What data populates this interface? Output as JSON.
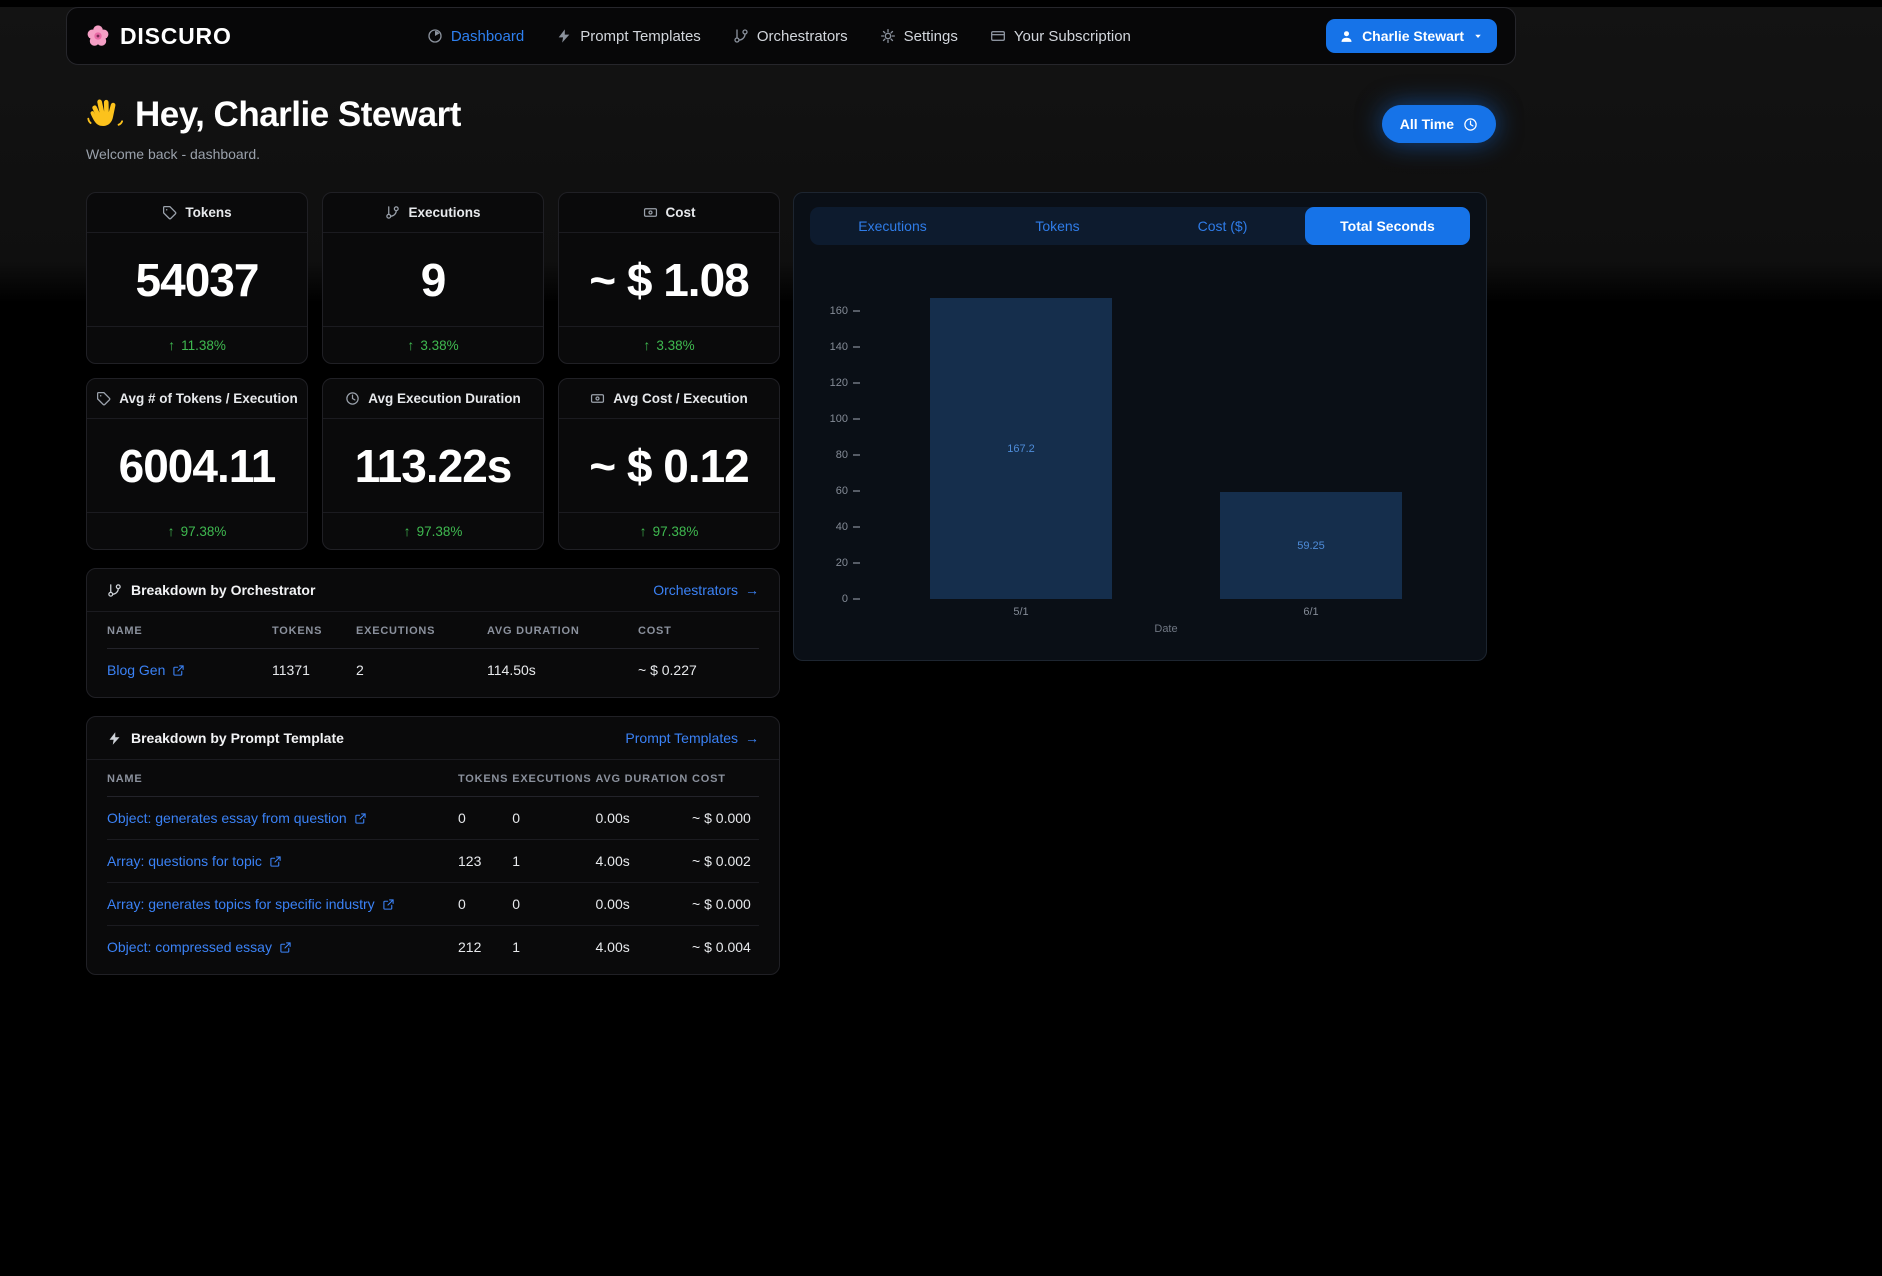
{
  "brand": {
    "name": "DISCURO",
    "logo_icon": "flower-icon"
  },
  "nav": {
    "items": [
      {
        "label": "Dashboard",
        "icon": "gauge-icon",
        "active": true
      },
      {
        "label": "Prompt Templates",
        "icon": "bolt-icon",
        "active": false
      },
      {
        "label": "Orchestrators",
        "icon": "branch-icon",
        "active": false
      },
      {
        "label": "Settings",
        "icon": "gear-icon",
        "active": false
      },
      {
        "label": "Your Subscription",
        "icon": "card-icon",
        "active": false
      }
    ],
    "user_button": {
      "label": "Charlie Stewart",
      "icon": "user-icon"
    }
  },
  "hero": {
    "greeting": "Hey, Charlie Stewart",
    "wave_icon": "waving-hand-icon",
    "subtitle": "Welcome back - dashboard.",
    "time_button_label": "All Time",
    "time_button_icon": "clock-icon"
  },
  "stats": [
    {
      "title": "Tokens",
      "icon": "tag-icon",
      "value": "54037",
      "change": "11.38%",
      "trend": "up"
    },
    {
      "title": "Executions",
      "icon": "branch-icon",
      "value": "9",
      "change": "3.38%",
      "trend": "up"
    },
    {
      "title": "Cost",
      "icon": "banknote-icon",
      "value": "~ $ 1.08",
      "change": "3.38%",
      "trend": "up"
    },
    {
      "title": "Avg # of Tokens / Execution",
      "icon": "tag-icon",
      "value": "6004.11",
      "change": "97.38%",
      "trend": "up"
    },
    {
      "title": "Avg Execution Duration",
      "icon": "clock-icon",
      "value": "113.22s",
      "change": "97.38%",
      "trend": "up"
    },
    {
      "title": "Avg Cost / Execution",
      "icon": "banknote-icon",
      "value": "~ $ 0.12",
      "change": "97.38%",
      "trend": "up"
    }
  ],
  "chart_panel": {
    "tabs": [
      {
        "label": "Executions",
        "active": false
      },
      {
        "label": "Tokens",
        "active": false
      },
      {
        "label": "Cost ($)",
        "active": false
      },
      {
        "label": "Total Seconds",
        "active": true
      }
    ]
  },
  "chart_data": {
    "type": "bar",
    "series_name": "Total Seconds",
    "x": [
      "5/1",
      "6/1"
    ],
    "values": [
      167.2,
      59.25
    ],
    "value_labels": [
      "167.2",
      "59.25"
    ],
    "xlabel": "Date",
    "ylim": [
      0,
      160
    ],
    "yticks": [
      0,
      20,
      40,
      60,
      80,
      100,
      120,
      140,
      160
    ],
    "grid": false,
    "legend": false,
    "bar_color": "#152e4c",
    "label_color": "#4e8cd8"
  },
  "orchestrators": {
    "title": "Breakdown by Orchestrator",
    "icon": "branch-icon",
    "link_label": "Orchestrators",
    "columns": [
      "NAME",
      "TOKENS",
      "EXECUTIONS",
      "AVG DURATION",
      "COST"
    ],
    "rows": [
      {
        "name": "Blog Gen",
        "tokens": "11371",
        "executions": "2",
        "avg_duration": "114.50s",
        "cost": "~ $ 0.227"
      }
    ]
  },
  "templates": {
    "title": "Breakdown by Prompt Template",
    "icon": "bolt-icon",
    "link_label": "Prompt Templates",
    "columns": [
      "NAME",
      "TOKENS",
      "EXECUTIONS",
      "AVG DURATION",
      "COST"
    ],
    "rows": [
      {
        "name": "Object: generates essay from question",
        "tokens": "0",
        "executions": "0",
        "avg_duration": "0.00s",
        "cost": "~ $ 0.000"
      },
      {
        "name": "Array: questions for topic",
        "tokens": "123",
        "executions": "1",
        "avg_duration": "4.00s",
        "cost": "~ $ 0.002"
      },
      {
        "name": "Array: generates topics for specific industry",
        "tokens": "0",
        "executions": "0",
        "avg_duration": "0.00s",
        "cost": "~ $ 0.000"
      },
      {
        "name": "Object: compressed essay",
        "tokens": "212",
        "executions": "1",
        "avg_duration": "4.00s",
        "cost": "~ $ 0.004"
      }
    ]
  },
  "colors": {
    "accent_blue": "#1673e8",
    "link_blue": "#3b82f6",
    "positive_green": "#3fb950",
    "bar_fill": "#152e4c",
    "bar_label": "#4e8cd8"
  }
}
